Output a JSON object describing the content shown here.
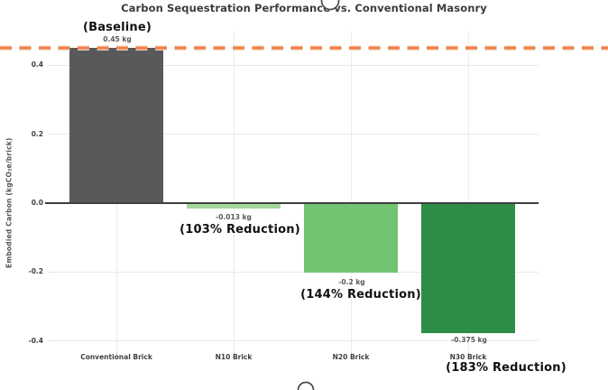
{
  "chart_data": {
    "type": "bar",
    "title": "Carbon Sequestration Performance vs. Conventional Masonry",
    "ylabel": "Embodied Carbon (kgCO₂e/brick)",
    "xlabel": "",
    "categories": [
      "Conventional Brick",
      "N10 Brick",
      "N20 Brick",
      "N30 Brick"
    ],
    "values": [
      0.45,
      -0.013,
      -0.2,
      -0.375
    ],
    "bar_colors": [
      "#59595b",
      "#a3d79d",
      "#72c472",
      "#2d8c46"
    ],
    "value_labels": [
      "0.45 kg",
      "-0.013 kg",
      "-0.2 kg",
      "-0.375 kg"
    ],
    "annotations": [
      "(Baseline)",
      "(103% Reduction)",
      "(144% Reduction)",
      "(183% Reduction)"
    ],
    "yticks": [
      0.4,
      0.2,
      0.0,
      -0.2,
      -0.4
    ],
    "ytick_labels": [
      "0.4",
      "0.2",
      "0.0",
      "-0.2",
      "-0.4"
    ],
    "ylim": [
      -0.43,
      0.5
    ],
    "grid": true,
    "legend": "none",
    "reference_line": {
      "value": 0.45,
      "style": "dashed",
      "color": "#ed7d45"
    },
    "colors": {
      "grid": "#e9e9e9",
      "zero_line": "#3f3f3f",
      "title": "#3c3c3c",
      "tick_label": "#3f3f3f",
      "value_label": "#595959",
      "annotation": "#111111",
      "handle_stroke": "#4a4a4a"
    }
  }
}
